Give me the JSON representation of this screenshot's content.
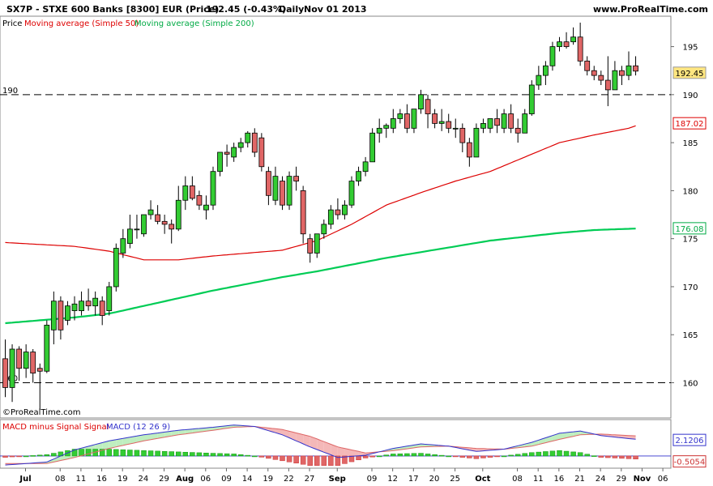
{
  "header": {
    "instrument": "SX7P - STXE 600 Banks [8300] EUR (Price)",
    "last_change": "192.45 (-0.43%)",
    "period": "Daily",
    "date": "Nov 01 2013",
    "website": "www.ProRealTime.com"
  },
  "legend": {
    "price_label": "Price",
    "ma50_label": "Moving average (Simple 50)",
    "ma200_label": "Moving average (Simple 200)",
    "macd_hist_label": "MACD minus Signal Signal",
    "macd_label": "MACD (12 26 9)"
  },
  "copyright": "©ProRealTime.com",
  "colors": {
    "up": "#33cc33",
    "down": "#e06666",
    "ma50": "#dd0000",
    "ma200": "#00cc55",
    "macd_line": "#3333cc",
    "signal_line": "#dd6666",
    "price_tag": "#ffe680"
  },
  "chart_data": {
    "type": "candlestick",
    "y_ticks": [
      "195",
      "190",
      "185",
      "180",
      "175",
      "170",
      "165",
      "160"
    ],
    "x_ticks": [
      {
        "label": "Jul",
        "bold": true,
        "i": 0
      },
      {
        "label": "08",
        "bold": false,
        "i": 5
      },
      {
        "label": "11",
        "bold": false,
        "i": 8
      },
      {
        "label": "16",
        "bold": false,
        "i": 11
      },
      {
        "label": "19",
        "bold": false,
        "i": 14
      },
      {
        "label": "24",
        "bold": false,
        "i": 17
      },
      {
        "label": "29",
        "bold": false,
        "i": 20
      },
      {
        "label": "Aug",
        "bold": true,
        "i": 23
      },
      {
        "label": "06",
        "bold": false,
        "i": 26
      },
      {
        "label": "09",
        "bold": false,
        "i": 29
      },
      {
        "label": "14",
        "bold": false,
        "i": 32
      },
      {
        "label": "19",
        "bold": false,
        "i": 35
      },
      {
        "label": "22",
        "bold": false,
        "i": 38
      },
      {
        "label": "27",
        "bold": false,
        "i": 41
      },
      {
        "label": "Sep",
        "bold": true,
        "i": 45
      },
      {
        "label": "09",
        "bold": false,
        "i": 50
      },
      {
        "label": "12",
        "bold": false,
        "i": 53
      },
      {
        "label": "17",
        "bold": false,
        "i": 56
      },
      {
        "label": "20",
        "bold": false,
        "i": 59
      },
      {
        "label": "25",
        "bold": false,
        "i": 62
      },
      {
        "label": "Oct",
        "bold": true,
        "i": 66
      },
      {
        "label": "08",
        "bold": false,
        "i": 71
      },
      {
        "label": "11",
        "bold": false,
        "i": 74
      },
      {
        "label": "16",
        "bold": false,
        "i": 77
      },
      {
        "label": "21",
        "bold": false,
        "i": 80
      },
      {
        "label": "24",
        "bold": false,
        "i": 83
      },
      {
        "label": "29",
        "bold": false,
        "i": 86
      },
      {
        "label": "Nov",
        "bold": true,
        "i": 89
      },
      {
        "label": "06",
        "bold": false,
        "i": 92
      }
    ],
    "horizontal_lines": [
      {
        "label": "190",
        "value": 190
      },
      {
        "label": "160",
        "value": 160
      }
    ],
    "last_labels": {
      "price": "192.45",
      "ma50": "187.02",
      "ma200": "176.08",
      "macd": "2.1206",
      "hist": "-0.5054"
    },
    "price_range": [
      156.5,
      198
    ],
    "macd_range": [
      -1.4,
      4.6
    ],
    "candles": [
      [
        162.5,
        164.5,
        158.5,
        159.5
      ],
      [
        159.5,
        164.0,
        158.0,
        163.5
      ],
      [
        163.5,
        163.8,
        160.2,
        161.5
      ],
      [
        161.5,
        164.0,
        160.5,
        163.2
      ],
      [
        163.2,
        163.5,
        160.0,
        161.0
      ],
      [
        161.5,
        162.0,
        157.2,
        161.2
      ],
      [
        161.2,
        166.5,
        161.0,
        166.0
      ],
      [
        165.5,
        169.5,
        164.0,
        168.5
      ],
      [
        168.5,
        169.0,
        164.5,
        165.5
      ],
      [
        166.5,
        168.5,
        166.0,
        168.0
      ],
      [
        167.5,
        169.0,
        166.5,
        168.2
      ],
      [
        167.5,
        169.5,
        167.0,
        168.5
      ],
      [
        168.5,
        169.8,
        167.5,
        168.0
      ],
      [
        168.0,
        169.5,
        167.0,
        168.8
      ],
      [
        168.5,
        169.0,
        166.0,
        167.0
      ],
      [
        167.5,
        170.5,
        167.0,
        170.0
      ],
      [
        170.0,
        174.5,
        169.5,
        174.0
      ],
      [
        173.5,
        176.0,
        173.0,
        175.0
      ],
      [
        174.5,
        177.5,
        174.0,
        176.0
      ],
      [
        176.0,
        177.5,
        175.0,
        176.0
      ],
      [
        175.5,
        177.5,
        175.2,
        177.5
      ],
      [
        177.5,
        179.0,
        177.0,
        178.0
      ],
      [
        177.5,
        178.5,
        176.5,
        176.8
      ],
      [
        176.8,
        177.5,
        175.5,
        176.5
      ],
      [
        176.5,
        177.0,
        174.5,
        176.0
      ],
      [
        176.0,
        180.5,
        175.8,
        179.0
      ],
      [
        179.0,
        181.5,
        178.0,
        180.5
      ],
      [
        180.5,
        181.5,
        179.0,
        179.2
      ],
      [
        179.5,
        180.0,
        178.0,
        178.5
      ],
      [
        178.0,
        179.5,
        177.0,
        178.5
      ],
      [
        178.5,
        182.5,
        178.0,
        182.0
      ],
      [
        182.0,
        184.0,
        181.5,
        184.0
      ],
      [
        184.0,
        184.8,
        182.5,
        183.8
      ],
      [
        183.5,
        185.0,
        183.0,
        184.5
      ],
      [
        184.5,
        185.5,
        184.0,
        185.0
      ],
      [
        185.0,
        186.2,
        184.5,
        186.0
      ],
      [
        186.0,
        186.5,
        183.5,
        184.0
      ],
      [
        185.5,
        186.0,
        182.0,
        182.5
      ],
      [
        182.0,
        182.5,
        178.5,
        179.5
      ],
      [
        179.0,
        182.5,
        178.5,
        181.5
      ],
      [
        181.0,
        181.5,
        178.0,
        178.5
      ],
      [
        178.5,
        182.0,
        178.0,
        181.5
      ],
      [
        181.5,
        182.5,
        180.0,
        181.0
      ],
      [
        180.0,
        180.5,
        174.5,
        175.5
      ],
      [
        175.0,
        175.5,
        172.5,
        173.5
      ],
      [
        173.5,
        175.5,
        173.0,
        175.5
      ],
      [
        175.5,
        177.0,
        175.0,
        176.5
      ],
      [
        176.5,
        178.5,
        176.0,
        178.0
      ],
      [
        178.0,
        179.2,
        177.0,
        177.5
      ],
      [
        177.5,
        179.0,
        177.0,
        178.5
      ],
      [
        178.5,
        181.5,
        178.2,
        181.0
      ],
      [
        181.0,
        182.5,
        180.5,
        182.0
      ],
      [
        182.0,
        183.5,
        181.5,
        183.0
      ],
      [
        183.0,
        186.5,
        183.0,
        186.0
      ],
      [
        186.0,
        187.5,
        185.0,
        186.5
      ],
      [
        186.5,
        187.0,
        185.5,
        186.8
      ],
      [
        186.5,
        188.5,
        186.0,
        187.5
      ],
      [
        187.5,
        188.5,
        187.0,
        188.0
      ],
      [
        188.0,
        189.0,
        186.0,
        186.5
      ],
      [
        186.5,
        188.5,
        186.0,
        188.5
      ],
      [
        188.5,
        190.5,
        188.0,
        190.0
      ],
      [
        189.5,
        190.0,
        186.5,
        188.0
      ],
      [
        188.0,
        188.5,
        186.5,
        187.0
      ],
      [
        187.0,
        188.5,
        186.2,
        187.2
      ],
      [
        187.2,
        188.0,
        186.0,
        186.5
      ],
      [
        186.5,
        187.5,
        185.5,
        186.5
      ],
      [
        186.5,
        187.0,
        184.0,
        185.0
      ],
      [
        185.0,
        185.5,
        182.5,
        183.5
      ],
      [
        183.5,
        187.0,
        183.5,
        186.5
      ],
      [
        186.5,
        187.5,
        186.0,
        187.0
      ],
      [
        186.5,
        187.5,
        186.0,
        187.5
      ],
      [
        187.5,
        188.5,
        186.0,
        186.8
      ],
      [
        186.5,
        188.5,
        186.0,
        188.0
      ],
      [
        188.0,
        189.0,
        186.0,
        186.5
      ],
      [
        186.5,
        187.5,
        185.0,
        186.0
      ],
      [
        186.0,
        188.5,
        186.0,
        188.0
      ],
      [
        188.0,
        191.5,
        187.8,
        191.0
      ],
      [
        191.0,
        193.0,
        190.5,
        192.0
      ],
      [
        192.0,
        193.5,
        191.0,
        193.0
      ],
      [
        193.0,
        195.5,
        192.5,
        195.0
      ],
      [
        195.0,
        196.0,
        194.5,
        195.5
      ],
      [
        195.5,
        196.5,
        194.8,
        195.0
      ],
      [
        195.5,
        197.0,
        195.2,
        196.0
      ],
      [
        196.0,
        197.5,
        193.0,
        193.5
      ],
      [
        193.5,
        194.0,
        192.0,
        192.5
      ],
      [
        192.5,
        193.0,
        191.5,
        192.0
      ],
      [
        192.0,
        192.5,
        191.0,
        191.5
      ],
      [
        191.5,
        194.0,
        188.8,
        190.5
      ],
      [
        190.5,
        193.5,
        190.5,
        192.5
      ],
      [
        192.5,
        193.0,
        191.0,
        192.0
      ],
      [
        192.0,
        194.5,
        191.5,
        193.0
      ],
      [
        193.0,
        194.0,
        192.0,
        192.45
      ]
    ],
    "ma50": [
      [
        0,
        174.6
      ],
      [
        10,
        174.2
      ],
      [
        15,
        173.7
      ],
      [
        20,
        172.8
      ],
      [
        25,
        172.8
      ],
      [
        30,
        173.2
      ],
      [
        35,
        173.5
      ],
      [
        40,
        173.8
      ],
      [
        45,
        174.8
      ],
      [
        50,
        176.5
      ],
      [
        55,
        178.5
      ],
      [
        60,
        179.8
      ],
      [
        65,
        181.0
      ],
      [
        70,
        182.0
      ],
      [
        75,
        183.5
      ],
      [
        80,
        185.0
      ],
      [
        85,
        185.8
      ],
      [
        90,
        186.5
      ],
      [
        92,
        187.02
      ]
    ],
    "ma200": [
      [
        0,
        166.2
      ],
      [
        10,
        166.8
      ],
      [
        15,
        167.2
      ],
      [
        20,
        168.0
      ],
      [
        25,
        168.8
      ],
      [
        30,
        169.6
      ],
      [
        35,
        170.3
      ],
      [
        40,
        171.0
      ],
      [
        45,
        171.6
      ],
      [
        50,
        172.3
      ],
      [
        55,
        173.0
      ],
      [
        60,
        173.6
      ],
      [
        65,
        174.2
      ],
      [
        70,
        174.8
      ],
      [
        75,
        175.2
      ],
      [
        80,
        175.6
      ],
      [
        85,
        175.9
      ],
      [
        92,
        176.08
      ]
    ],
    "macd": [
      [
        0,
        -1.2
      ],
      [
        6,
        -0.8
      ],
      [
        10,
        0.8
      ],
      [
        15,
        2.0
      ],
      [
        20,
        2.8
      ],
      [
        25,
        3.4
      ],
      [
        30,
        3.8
      ],
      [
        33,
        4.1
      ],
      [
        36,
        3.9
      ],
      [
        40,
        2.8
      ],
      [
        44,
        1.2
      ],
      [
        48,
        -0.2
      ],
      [
        52,
        0.1
      ],
      [
        56,
        1.0
      ],
      [
        60,
        1.6
      ],
      [
        64,
        1.3
      ],
      [
        68,
        0.6
      ],
      [
        72,
        0.9
      ],
      [
        76,
        1.8
      ],
      [
        80,
        3.0
      ],
      [
        83,
        3.3
      ],
      [
        86,
        2.7
      ],
      [
        90,
        2.3
      ],
      [
        92,
        2.12
      ]
    ],
    "signal": [
      [
        0,
        -1.0
      ],
      [
        6,
        -1.0
      ],
      [
        10,
        -0.2
      ],
      [
        15,
        1.0
      ],
      [
        20,
        2.0
      ],
      [
        25,
        2.8
      ],
      [
        30,
        3.4
      ],
      [
        33,
        3.8
      ],
      [
        36,
        3.9
      ],
      [
        40,
        3.5
      ],
      [
        44,
        2.6
      ],
      [
        48,
        1.2
      ],
      [
        52,
        0.4
      ],
      [
        56,
        0.7
      ],
      [
        60,
        1.2
      ],
      [
        64,
        1.3
      ],
      [
        68,
        1.0
      ],
      [
        72,
        0.9
      ],
      [
        76,
        1.3
      ],
      [
        80,
        2.2
      ],
      [
        83,
        2.8
      ],
      [
        86,
        2.9
      ],
      [
        90,
        2.7
      ],
      [
        92,
        2.63
      ]
    ]
  }
}
